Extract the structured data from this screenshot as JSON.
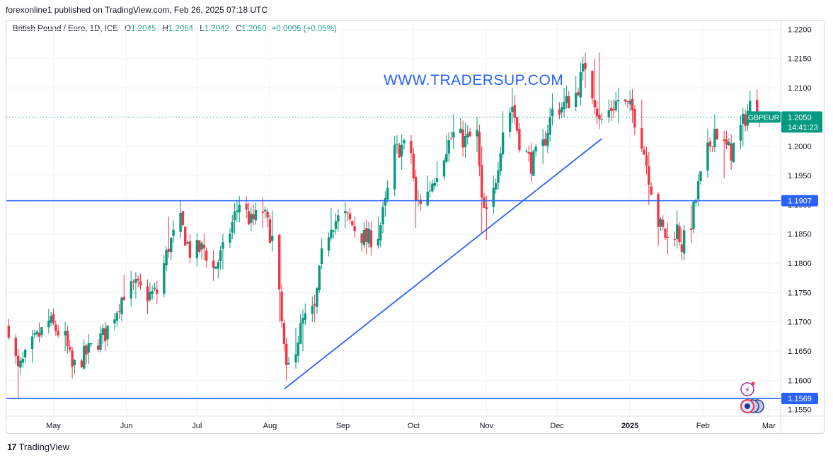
{
  "header": {
    "publish_text": "forexonline1 published on TradingView.com, Feb 26, 2025 07:18 UTC"
  },
  "legend": {
    "symbol_text": "British Pound / Euro, 1D, ICE",
    "open_label": "O",
    "open": "1.2045",
    "high_label": "H",
    "high": "1.2054",
    "low_label": "L",
    "low": "1.2042",
    "close_label": "C",
    "close": "1.2050",
    "change": "+0.0006 (+0.05%)"
  },
  "watermark": "WWW.TRADERSUP.COM",
  "footer": {
    "brand": "TradingView",
    "logo_text": "17"
  },
  "price_tag": {
    "ticker": "GBPEUR",
    "price": "1.2050",
    "countdown": "14:41:23"
  },
  "colors": {
    "up": "#089981",
    "down": "#f23645",
    "lines": "#2962ff",
    "grid": "#f0f3fa",
    "axis_text": "#131722"
  },
  "chart_data": {
    "type": "candlestick",
    "ylim": [
      1.154,
      1.2215
    ],
    "y_ticks": [
      "1.2200",
      "1.2150",
      "1.2100",
      "1.2050",
      "1.2000",
      "1.1950",
      "1.1900",
      "1.1850",
      "1.1800",
      "1.1750",
      "1.1700",
      "1.1650",
      "1.1600",
      "1.1550"
    ],
    "x_ticks": [
      {
        "label": "May",
        "date": "2024-05-01"
      },
      {
        "label": "Jun",
        "date": "2024-06-01"
      },
      {
        "label": "Jul",
        "date": "2024-07-01"
      },
      {
        "label": "Aug",
        "date": "2024-08-01"
      },
      {
        "label": "Sep",
        "date": "2024-09-01"
      },
      {
        "label": "Oct",
        "date": "2024-10-01"
      },
      {
        "label": "Nov",
        "date": "2024-11-01"
      },
      {
        "label": "Dec",
        "date": "2024-12-01"
      },
      {
        "label": "2025",
        "date": "2025-01-01",
        "bold": true
      },
      {
        "label": "Feb",
        "date": "2025-02-01"
      },
      {
        "label": "Mar",
        "date": "2025-03-01"
      }
    ],
    "horizontal_levels": [
      {
        "price": 1.1907,
        "label": "1.1907"
      },
      {
        "price": 1.1569,
        "label": "1.1569"
      }
    ],
    "current_price": 1.205,
    "trendline": {
      "from": {
        "date": "2024-08-07",
        "price": 1.1585
      },
      "to": {
        "date": "2024-12-20",
        "price": 1.2013
      }
    },
    "anchors": [
      {
        "date": "2024-04-12",
        "close": 1.169,
        "high": 1.1705,
        "low": 1.1675
      },
      {
        "date": "2024-04-16",
        "close": 1.1615,
        "high": 1.164,
        "low": 1.1568
      },
      {
        "date": "2024-04-22",
        "close": 1.166,
        "high": 1.168,
        "low": 1.163
      },
      {
        "date": "2024-04-29",
        "close": 1.17,
        "high": 1.1722,
        "low": 1.168
      },
      {
        "date": "2024-05-06",
        "close": 1.167,
        "high": 1.169,
        "low": 1.165
      },
      {
        "date": "2024-05-09",
        "close": 1.162,
        "high": 1.164,
        "low": 1.1603
      },
      {
        "date": "2024-05-16",
        "close": 1.165,
        "high": 1.167,
        "low": 1.1628
      },
      {
        "date": "2024-05-23",
        "close": 1.168,
        "high": 1.17,
        "low": 1.166
      },
      {
        "date": "2024-05-31",
        "close": 1.175,
        "high": 1.178,
        "low": 1.1735
      },
      {
        "date": "2024-06-05",
        "close": 1.176,
        "high": 1.1785,
        "low": 1.174
      },
      {
        "date": "2024-06-10",
        "close": 1.1745,
        "high": 1.176,
        "low": 1.1713
      },
      {
        "date": "2024-06-14",
        "close": 1.175,
        "high": 1.177,
        "low": 1.173
      },
      {
        "date": "2024-06-19",
        "close": 1.183,
        "high": 1.188,
        "low": 1.181
      },
      {
        "date": "2024-06-24",
        "close": 1.187,
        "high": 1.1908,
        "low": 1.185
      },
      {
        "date": "2024-06-28",
        "close": 1.182,
        "high": 1.185,
        "low": 1.18
      },
      {
        "date": "2024-07-04",
        "close": 1.1825,
        "high": 1.185,
        "low": 1.1805
      },
      {
        "date": "2024-07-08",
        "close": 1.179,
        "high": 1.181,
        "low": 1.177
      },
      {
        "date": "2024-07-12",
        "close": 1.182,
        "high": 1.185,
        "low": 1.179
      },
      {
        "date": "2024-07-17",
        "close": 1.188,
        "high": 1.19,
        "low": 1.185
      },
      {
        "date": "2024-07-19",
        "close": 1.1905,
        "high": 1.1915,
        "low": 1.187
      },
      {
        "date": "2024-07-24",
        "close": 1.187,
        "high": 1.1895,
        "low": 1.1855
      },
      {
        "date": "2024-07-29",
        "close": 1.189,
        "high": 1.1912,
        "low": 1.186
      },
      {
        "date": "2024-08-02",
        "close": 1.184,
        "high": 1.189,
        "low": 1.182
      },
      {
        "date": "2024-08-05",
        "close": 1.174,
        "high": 1.18,
        "low": 1.17
      },
      {
        "date": "2024-08-08",
        "close": 1.161,
        "high": 1.166,
        "low": 1.16
      },
      {
        "date": "2024-08-12",
        "close": 1.166,
        "high": 1.169,
        "low": 1.163
      },
      {
        "date": "2024-08-15",
        "close": 1.17,
        "high": 1.172,
        "low": 1.165
      },
      {
        "date": "2024-08-20",
        "close": 1.172,
        "high": 1.174,
        "low": 1.17
      },
      {
        "date": "2024-08-23",
        "close": 1.181,
        "high": 1.184,
        "low": 1.179
      },
      {
        "date": "2024-08-27",
        "close": 1.187,
        "high": 1.1895,
        "low": 1.185
      },
      {
        "date": "2024-09-02",
        "close": 1.188,
        "high": 1.1905,
        "low": 1.186
      },
      {
        "date": "2024-09-06",
        "close": 1.186,
        "high": 1.188,
        "low": 1.1845
      },
      {
        "date": "2024-09-11",
        "close": 1.184,
        "high": 1.187,
        "low": 1.1815
      },
      {
        "date": "2024-09-16",
        "close": 1.185,
        "high": 1.188,
        "low": 1.183
      },
      {
        "date": "2024-09-19",
        "close": 1.19,
        "high": 1.191,
        "low": 1.188
      },
      {
        "date": "2024-09-23",
        "close": 1.199,
        "high": 1.201,
        "low": 1.194
      },
      {
        "date": "2024-09-26",
        "close": 1.2,
        "high": 1.202,
        "low": 1.196
      },
      {
        "date": "2024-09-30",
        "close": 1.199,
        "high": 1.201,
        "low": 1.197
      },
      {
        "date": "2024-10-02",
        "close": 1.19,
        "high": 1.196,
        "low": 1.186
      },
      {
        "date": "2024-10-07",
        "close": 1.192,
        "high": 1.195,
        "low": 1.19
      },
      {
        "date": "2024-10-11",
        "close": 1.196,
        "high": 1.1975,
        "low": 1.1935
      },
      {
        "date": "2024-10-15",
        "close": 1.2,
        "high": 1.202,
        "low": 1.198
      },
      {
        "date": "2024-10-18",
        "close": 1.202,
        "high": 1.2055,
        "low": 1.1995
      },
      {
        "date": "2024-10-23",
        "close": 1.201,
        "high": 1.204,
        "low": 1.198
      },
      {
        "date": "2024-10-28",
        "close": 1.202,
        "high": 1.205,
        "low": 1.199
      },
      {
        "date": "2024-10-30",
        "close": 1.19,
        "high": 1.2,
        "low": 1.185
      },
      {
        "date": "2024-11-01",
        "close": 1.188,
        "high": 1.1915,
        "low": 1.184
      },
      {
        "date": "2024-11-04",
        "close": 1.192,
        "high": 1.195,
        "low": 1.19
      },
      {
        "date": "2024-11-08",
        "close": 1.203,
        "high": 1.206,
        "low": 1.199
      },
      {
        "date": "2024-11-12",
        "close": 1.207,
        "high": 1.21,
        "low": 1.204
      },
      {
        "date": "2024-11-15",
        "close": 1.201,
        "high": 1.204,
        "low": 1.199
      },
      {
        "date": "2024-11-20",
        "close": 1.197,
        "high": 1.2,
        "low": 1.195
      },
      {
        "date": "2024-11-25",
        "close": 1.2,
        "high": 1.203,
        "low": 1.197
      },
      {
        "date": "2024-11-29",
        "close": 1.206,
        "high": 1.209,
        "low": 1.204
      },
      {
        "date": "2024-12-04",
        "close": 1.207,
        "high": 1.21,
        "low": 1.205
      },
      {
        "date": "2024-12-09",
        "close": 1.209,
        "high": 1.212,
        "low": 1.206
      },
      {
        "date": "2024-12-13",
        "close": 1.214,
        "high": 1.216,
        "low": 1.21
      },
      {
        "date": "2024-12-17",
        "close": 1.208,
        "high": 1.215,
        "low": 1.206
      },
      {
        "date": "2024-12-19",
        "close": 1.204,
        "high": 1.216,
        "low": 1.203
      },
      {
        "date": "2024-12-23",
        "close": 1.206,
        "high": 1.208,
        "low": 1.204
      },
      {
        "date": "2024-12-27",
        "close": 1.208,
        "high": 1.21,
        "low": 1.204
      },
      {
        "date": "2025-01-02",
        "close": 1.206,
        "high": 1.2095,
        "low": 1.204
      },
      {
        "date": "2025-01-06",
        "close": 1.201,
        "high": 1.208,
        "low": 1.199
      },
      {
        "date": "2025-01-09",
        "close": 1.195,
        "high": 1.199,
        "low": 1.19
      },
      {
        "date": "2025-01-13",
        "close": 1.187,
        "high": 1.192,
        "low": 1.183
      },
      {
        "date": "2025-01-17",
        "close": 1.184,
        "high": 1.187,
        "low": 1.1815
      },
      {
        "date": "2025-01-21",
        "close": 1.186,
        "high": 1.189,
        "low": 1.1825
      },
      {
        "date": "2025-01-23",
        "close": 1.183,
        "high": 1.186,
        "low": 1.1805
      },
      {
        "date": "2025-01-27",
        "close": 1.187,
        "high": 1.19,
        "low": 1.1835
      },
      {
        "date": "2025-01-30",
        "close": 1.193,
        "high": 1.195,
        "low": 1.191
      },
      {
        "date": "2025-02-03",
        "close": 1.199,
        "high": 1.203,
        "low": 1.197
      },
      {
        "date": "2025-02-06",
        "close": 1.203,
        "high": 1.2055,
        "low": 1.201
      },
      {
        "date": "2025-02-10",
        "close": 1.2,
        "high": 1.202,
        "low": 1.1945
      },
      {
        "date": "2025-02-13",
        "close": 1.199,
        "high": 1.202,
        "low": 1.196
      },
      {
        "date": "2025-02-18",
        "close": 1.204,
        "high": 1.206,
        "low": 1.2
      },
      {
        "date": "2025-02-21",
        "close": 1.207,
        "high": 1.2095,
        "low": 1.2045
      },
      {
        "date": "2025-02-24",
        "close": 1.2065,
        "high": 1.2085,
        "low": 1.2045
      },
      {
        "date": "2025-02-26",
        "close": 1.205,
        "high": 1.2054,
        "low": 1.2042
      }
    ]
  }
}
